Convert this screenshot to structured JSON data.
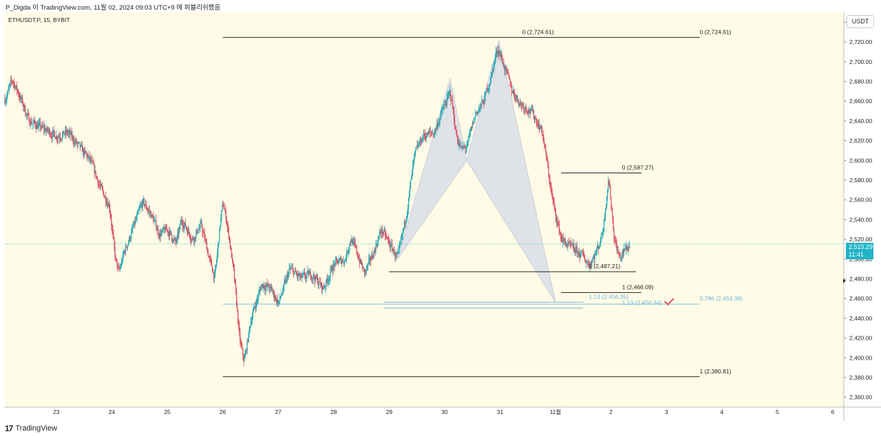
{
  "header": {
    "title": "P_Digda 이 TradingView.com, 11월 02, 2024 09:03 UTC+9 에 퍼블리쉬했음"
  },
  "symbol": {
    "label": "ETHUSDT.P, 15, BYBIT"
  },
  "price_axis": {
    "currency": "USDT",
    "current_price": "2,515.29",
    "countdown": "11:41"
  },
  "footer": {
    "logo_text": "TradingView",
    "logo_mark": "17"
  },
  "colors": {
    "background": "#fffbe6",
    "up": "#22a7b3",
    "down": "#d84b5c",
    "line": "#222222",
    "fib_blue": "#6bb6e0",
    "pattern_fill": "#d9dde6",
    "check": "#e05a6a",
    "price_badge": "#22b3c7"
  },
  "chart_data": {
    "type": "candlestick",
    "ylim": [
      2350,
      2750
    ],
    "y_ticks": [
      2360,
      2380,
      2400,
      2420,
      2440,
      2460,
      2480,
      2500,
      2520,
      2540,
      2560,
      2580,
      2600,
      2620,
      2640,
      2660,
      2680,
      2700,
      2720,
      2740
    ],
    "y_tick_labels": [
      "2,360.00",
      "2,380.00",
      "2,400.00",
      "2,420.00",
      "2,440.00",
      "2,460.00",
      "2,480.00",
      "2,500.00",
      "2,520.00",
      "2,540.00",
      "2,560.00",
      "2,580.00",
      "2,600.00",
      "2,620.00",
      "2,640.00",
      "2,660.00",
      "2,680.00",
      "2,700.00",
      "2,720.00",
      "2,740.00"
    ],
    "x_ticks": [
      {
        "day": 23,
        "label": "23"
      },
      {
        "day": 24,
        "label": "24"
      },
      {
        "day": 25,
        "label": "25"
      },
      {
        "day": 26,
        "label": "26"
      },
      {
        "day": 27,
        "label": "27"
      },
      {
        "day": 28,
        "label": "28"
      },
      {
        "day": 29,
        "label": "29"
      },
      {
        "day": 30,
        "label": "30"
      },
      {
        "day": 31,
        "label": "31"
      },
      {
        "day": 32,
        "label": "11월"
      },
      {
        "day": 33,
        "label": "2"
      },
      {
        "day": 34,
        "label": "3"
      },
      {
        "day": 35,
        "label": "4"
      },
      {
        "day": 36,
        "label": "5"
      },
      {
        "day": 37,
        "label": "6"
      }
    ],
    "xlim": [
      22.07,
      37.2
    ],
    "price_path": [
      [
        22.07,
        2662
      ],
      [
        22.2,
        2682
      ],
      [
        22.35,
        2662
      ],
      [
        22.5,
        2640
      ],
      [
        22.75,
        2632
      ],
      [
        23.0,
        2625
      ],
      [
        23.2,
        2628
      ],
      [
        23.45,
        2610
      ],
      [
        23.6,
        2600
      ],
      [
        23.8,
        2570
      ],
      [
        23.95,
        2555
      ],
      [
        24.05,
        2500
      ],
      [
        24.12,
        2485
      ],
      [
        24.2,
        2505
      ],
      [
        24.4,
        2535
      ],
      [
        24.55,
        2558
      ],
      [
        24.7,
        2545
      ],
      [
        24.85,
        2525
      ],
      [
        25.0,
        2530
      ],
      [
        25.15,
        2515
      ],
      [
        25.25,
        2540
      ],
      [
        25.45,
        2520
      ],
      [
        25.6,
        2535
      ],
      [
        25.75,
        2500
      ],
      [
        25.85,
        2480
      ],
      [
        25.95,
        2540
      ],
      [
        26.0,
        2558
      ],
      [
        26.1,
        2525
      ],
      [
        26.2,
        2480
      ],
      [
        26.3,
        2415
      ],
      [
        26.38,
        2395
      ],
      [
        26.5,
        2440
      ],
      [
        26.7,
        2475
      ],
      [
        26.85,
        2470
      ],
      [
        27.0,
        2455
      ],
      [
        27.2,
        2490
      ],
      [
        27.4,
        2480
      ],
      [
        27.6,
        2485
      ],
      [
        27.8,
        2470
      ],
      [
        28.0,
        2495
      ],
      [
        28.2,
        2500
      ],
      [
        28.3,
        2522
      ],
      [
        28.45,
        2500
      ],
      [
        28.55,
        2485
      ],
      [
        28.7,
        2505
      ],
      [
        28.85,
        2530
      ],
      [
        29.0,
        2515
      ],
      [
        29.15,
        2500
      ],
      [
        29.3,
        2545
      ],
      [
        29.45,
        2605
      ],
      [
        29.6,
        2625
      ],
      [
        29.8,
        2628
      ],
      [
        29.95,
        2650
      ],
      [
        30.1,
        2670
      ],
      [
        30.2,
        2625
      ],
      [
        30.3,
        2610
      ],
      [
        30.4,
        2615
      ],
      [
        30.55,
        2648
      ],
      [
        30.7,
        2660
      ],
      [
        30.85,
        2690
      ],
      [
        30.95,
        2715
      ],
      [
        31.05,
        2698
      ],
      [
        31.2,
        2672
      ],
      [
        31.35,
        2658
      ],
      [
        31.55,
        2650
      ],
      [
        31.75,
        2630
      ],
      [
        31.95,
        2555
      ],
      [
        32.1,
        2520
      ],
      [
        32.25,
        2512
      ],
      [
        32.45,
        2505
      ],
      [
        32.6,
        2494
      ],
      [
        32.75,
        2510
      ],
      [
        32.85,
        2530
      ],
      [
        32.95,
        2585
      ],
      [
        33.05,
        2520
      ],
      [
        33.15,
        2500
      ],
      [
        33.25,
        2510
      ],
      [
        33.35,
        2515
      ]
    ],
    "annotations": {
      "horizontal_lines": [
        {
          "name": "bat-upper-0",
          "x0": 26.0,
          "x1": 31.0,
          "y": 2724.61
        },
        {
          "name": "bat-upper-0-ext",
          "x0": 31.0,
          "x1": 34.6,
          "y": 2724.61
        },
        {
          "name": "bat-lower-1",
          "x0": 26.0,
          "x1": 34.6,
          "y": 2380.81
        },
        {
          "name": "swing-0",
          "x0": 32.1,
          "x1": 33.55,
          "y": 2587.27
        },
        {
          "name": "swing-1",
          "x0": 29.0,
          "x1": 32.45,
          "y": 2487.21
        },
        {
          "name": "swing-1b",
          "x0": 32.45,
          "x1": 33.45,
          "y": 2487.21
        },
        {
          "name": "swing-1-lower",
          "x0": 32.1,
          "x1": 33.55,
          "y": 2466.09
        },
        {
          "name": "fib-786",
          "x0": 26.0,
          "x1": 34.6,
          "y": 2454.38,
          "color": "blue"
        },
        {
          "name": "fib-113a",
          "x0": 28.9,
          "x1": 32.5,
          "y": 2456.35,
          "color": "blue"
        },
        {
          "name": "fib-113b",
          "x0": 28.9,
          "x1": 32.5,
          "y": 2450.34,
          "color": "blue"
        }
      ],
      "labels": [
        {
          "text": "0 (2,724.61)",
          "x": 31.4,
          "y": 2724.61
        },
        {
          "text": "0 (2,724.61)",
          "x": 34.6,
          "y": 2724.61
        },
        {
          "text": "1 (2,380.81)",
          "x": 34.6,
          "y": 2380.81
        },
        {
          "text": "0 (2,587.27)",
          "x": 33.2,
          "y": 2587.27
        },
        {
          "text": "1 (2,487.21)",
          "x": 32.6,
          "y": 2487.21
        },
        {
          "text": "1 (2,466.09)",
          "x": 33.2,
          "y": 2466.09
        },
        {
          "text": "1.13 (2,456.35)",
          "x": 32.6,
          "y": 2456.35,
          "color": "blue"
        },
        {
          "text": "1.13 (2,450.34)",
          "x": 33.2,
          "y": 2450.34,
          "color": "blue"
        },
        {
          "text": "0.786 (2,454.38)",
          "x": 34.6,
          "y": 2454.38,
          "color": "blue"
        }
      ],
      "pattern": {
        "triangle_1": [
          [
            29.15,
            2500
          ],
          [
            30.1,
            2683
          ],
          [
            30.4,
            2600
          ]
        ],
        "triangle_2": [
          [
            30.4,
            2600
          ],
          [
            30.98,
            2722
          ],
          [
            32.0,
            2456
          ]
        ]
      }
    }
  }
}
